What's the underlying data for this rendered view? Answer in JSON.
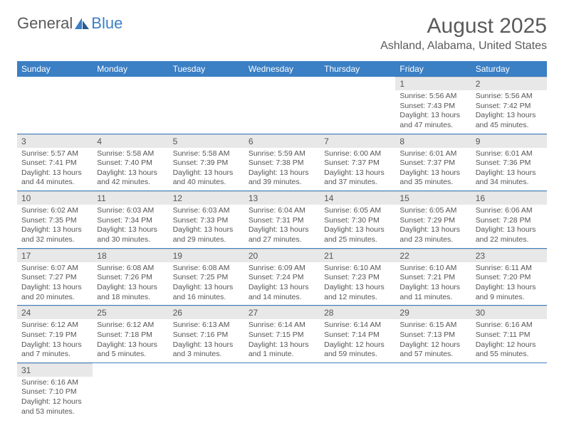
{
  "logo": {
    "text1": "General",
    "text2": "Blue"
  },
  "title": "August 2025",
  "location": "Ashland, Alabama, United States",
  "colors": {
    "header_bg": "#3b7fc4",
    "day_num_bg": "#e8e8e8",
    "text": "#555555"
  },
  "weekdays": [
    "Sunday",
    "Monday",
    "Tuesday",
    "Wednesday",
    "Thursday",
    "Friday",
    "Saturday"
  ],
  "weeks": [
    [
      null,
      null,
      null,
      null,
      null,
      {
        "n": "1",
        "sr": "5:56 AM",
        "ss": "7:43 PM",
        "dl": "13 hours and 47 minutes."
      },
      {
        "n": "2",
        "sr": "5:56 AM",
        "ss": "7:42 PM",
        "dl": "13 hours and 45 minutes."
      }
    ],
    [
      {
        "n": "3",
        "sr": "5:57 AM",
        "ss": "7:41 PM",
        "dl": "13 hours and 44 minutes."
      },
      {
        "n": "4",
        "sr": "5:58 AM",
        "ss": "7:40 PM",
        "dl": "13 hours and 42 minutes."
      },
      {
        "n": "5",
        "sr": "5:58 AM",
        "ss": "7:39 PM",
        "dl": "13 hours and 40 minutes."
      },
      {
        "n": "6",
        "sr": "5:59 AM",
        "ss": "7:38 PM",
        "dl": "13 hours and 39 minutes."
      },
      {
        "n": "7",
        "sr": "6:00 AM",
        "ss": "7:37 PM",
        "dl": "13 hours and 37 minutes."
      },
      {
        "n": "8",
        "sr": "6:01 AM",
        "ss": "7:37 PM",
        "dl": "13 hours and 35 minutes."
      },
      {
        "n": "9",
        "sr": "6:01 AM",
        "ss": "7:36 PM",
        "dl": "13 hours and 34 minutes."
      }
    ],
    [
      {
        "n": "10",
        "sr": "6:02 AM",
        "ss": "7:35 PM",
        "dl": "13 hours and 32 minutes."
      },
      {
        "n": "11",
        "sr": "6:03 AM",
        "ss": "7:34 PM",
        "dl": "13 hours and 30 minutes."
      },
      {
        "n": "12",
        "sr": "6:03 AM",
        "ss": "7:33 PM",
        "dl": "13 hours and 29 minutes."
      },
      {
        "n": "13",
        "sr": "6:04 AM",
        "ss": "7:31 PM",
        "dl": "13 hours and 27 minutes."
      },
      {
        "n": "14",
        "sr": "6:05 AM",
        "ss": "7:30 PM",
        "dl": "13 hours and 25 minutes."
      },
      {
        "n": "15",
        "sr": "6:05 AM",
        "ss": "7:29 PM",
        "dl": "13 hours and 23 minutes."
      },
      {
        "n": "16",
        "sr": "6:06 AM",
        "ss": "7:28 PM",
        "dl": "13 hours and 22 minutes."
      }
    ],
    [
      {
        "n": "17",
        "sr": "6:07 AM",
        "ss": "7:27 PM",
        "dl": "13 hours and 20 minutes."
      },
      {
        "n": "18",
        "sr": "6:08 AM",
        "ss": "7:26 PM",
        "dl": "13 hours and 18 minutes."
      },
      {
        "n": "19",
        "sr": "6:08 AM",
        "ss": "7:25 PM",
        "dl": "13 hours and 16 minutes."
      },
      {
        "n": "20",
        "sr": "6:09 AM",
        "ss": "7:24 PM",
        "dl": "13 hours and 14 minutes."
      },
      {
        "n": "21",
        "sr": "6:10 AM",
        "ss": "7:23 PM",
        "dl": "13 hours and 12 minutes."
      },
      {
        "n": "22",
        "sr": "6:10 AM",
        "ss": "7:21 PM",
        "dl": "13 hours and 11 minutes."
      },
      {
        "n": "23",
        "sr": "6:11 AM",
        "ss": "7:20 PM",
        "dl": "13 hours and 9 minutes."
      }
    ],
    [
      {
        "n": "24",
        "sr": "6:12 AM",
        "ss": "7:19 PM",
        "dl": "13 hours and 7 minutes."
      },
      {
        "n": "25",
        "sr": "6:12 AM",
        "ss": "7:18 PM",
        "dl": "13 hours and 5 minutes."
      },
      {
        "n": "26",
        "sr": "6:13 AM",
        "ss": "7:16 PM",
        "dl": "13 hours and 3 minutes."
      },
      {
        "n": "27",
        "sr": "6:14 AM",
        "ss": "7:15 PM",
        "dl": "13 hours and 1 minute."
      },
      {
        "n": "28",
        "sr": "6:14 AM",
        "ss": "7:14 PM",
        "dl": "12 hours and 59 minutes."
      },
      {
        "n": "29",
        "sr": "6:15 AM",
        "ss": "7:13 PM",
        "dl": "12 hours and 57 minutes."
      },
      {
        "n": "30",
        "sr": "6:16 AM",
        "ss": "7:11 PM",
        "dl": "12 hours and 55 minutes."
      }
    ],
    [
      {
        "n": "31",
        "sr": "6:16 AM",
        "ss": "7:10 PM",
        "dl": "12 hours and 53 minutes."
      },
      null,
      null,
      null,
      null,
      null,
      null
    ]
  ],
  "labels": {
    "sunrise": "Sunrise:",
    "sunset": "Sunset:",
    "daylight": "Daylight:"
  }
}
